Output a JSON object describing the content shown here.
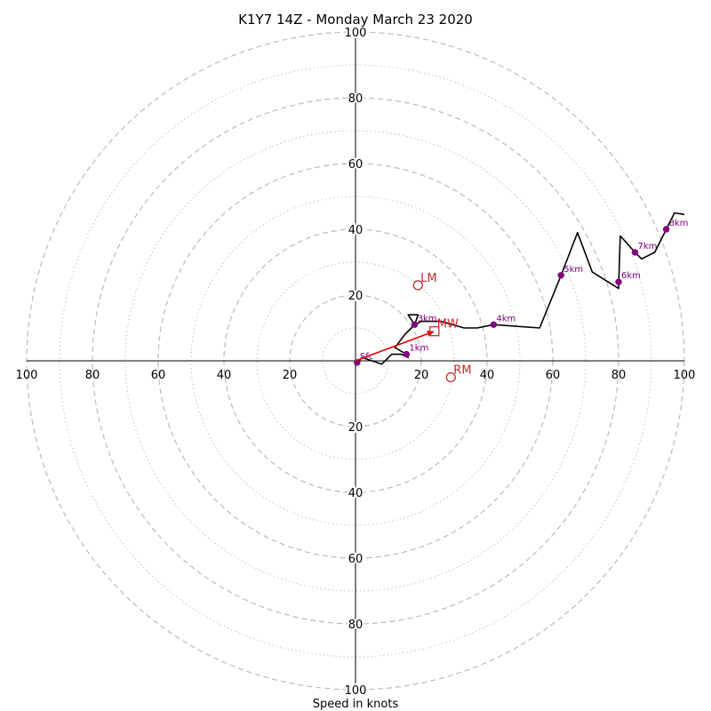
{
  "chart_data": {
    "type": "hodograph",
    "title": "K1Y7 14Z - Monday March 23 2020",
    "xlabel": "Speed in knots",
    "units": "knots",
    "max_speed": 100,
    "ring_major_step": 20,
    "ring_minor_step": 10,
    "tick_values": [
      20,
      40,
      60,
      80,
      100
    ],
    "colors": {
      "profile_line": "#000000",
      "height_marker": "#800080",
      "storm_motion": "#c62828",
      "mean_wind_arrow": "#e00000",
      "grid": "#bbbbbb"
    },
    "profile": [
      {
        "u": 0.5,
        "v": -0.5
      },
      {
        "u": 2,
        "v": 1
      },
      {
        "u": 5,
        "v": 0
      },
      {
        "u": 8,
        "v": -1
      },
      {
        "u": 11,
        "v": 2
      },
      {
        "u": 14,
        "v": 2
      },
      {
        "u": 16,
        "v": 1
      },
      {
        "u": 15.5,
        "v": 2
      },
      {
        "u": 12,
        "v": 4
      },
      {
        "u": 15,
        "v": 8
      },
      {
        "u": 17,
        "v": 10
      },
      {
        "u": 18,
        "v": 11
      },
      {
        "u": 16,
        "v": 14
      },
      {
        "u": 19,
        "v": 14
      },
      {
        "u": 18,
        "v": 11
      },
      {
        "u": 20,
        "v": 12
      },
      {
        "u": 26,
        "v": 12
      },
      {
        "u": 33,
        "v": 10
      },
      {
        "u": 37,
        "v": 10
      },
      {
        "u": 42,
        "v": 11
      },
      {
        "u": 56,
        "v": 10
      },
      {
        "u": 62.5,
        "v": 26
      },
      {
        "u": 67.5,
        "v": 39
      },
      {
        "u": 72,
        "v": 27
      },
      {
        "u": 80,
        "v": 22
      },
      {
        "u": 80.5,
        "v": 38
      },
      {
        "u": 85,
        "v": 33
      },
      {
        "u": 87,
        "v": 31
      },
      {
        "u": 91,
        "v": 33
      },
      {
        "u": 94.5,
        "v": 40
      },
      {
        "u": 97,
        "v": 45
      },
      {
        "u": 100,
        "v": 44.5
      }
    ],
    "height_markers": [
      {
        "label": "Sfc",
        "u": 0.5,
        "v": -0.5
      },
      {
        "label": "1km",
        "u": 15.5,
        "v": 2
      },
      {
        "label": "3km",
        "u": 18,
        "v": 11
      },
      {
        "label": "4km",
        "u": 42,
        "v": 11
      },
      {
        "label": "5km",
        "u": 62.5,
        "v": 26
      },
      {
        "label": "6km",
        "u": 80,
        "v": 24
      },
      {
        "label": "7km",
        "u": 85,
        "v": 33
      },
      {
        "label": "8km",
        "u": 94.5,
        "v": 40
      }
    ],
    "storm_motion": [
      {
        "label": "LM",
        "u": 19,
        "v": 23,
        "marker": "circle"
      },
      {
        "label": "MW",
        "u": 24,
        "v": 9,
        "marker": "square"
      },
      {
        "label": "RM",
        "u": 29,
        "v": -5,
        "marker": "circle"
      }
    ],
    "mean_wind_arrow": {
      "from_u": 0,
      "from_v": 0,
      "to_u": 24,
      "to_v": 9
    }
  }
}
